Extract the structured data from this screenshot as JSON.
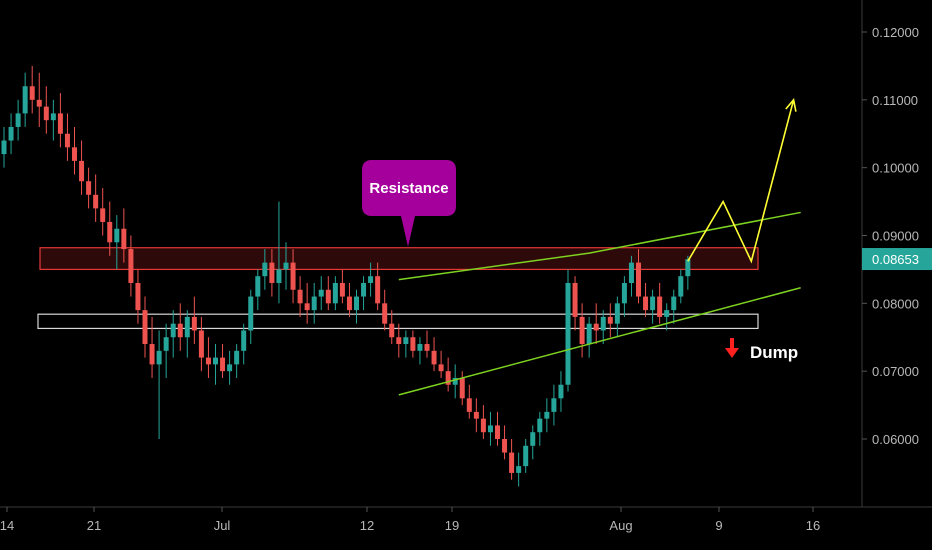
{
  "chart_data": {
    "type": "candlestick",
    "y_axis": {
      "ticks": [
        "0.12000",
        "0.11000",
        "0.10000",
        "0.09000",
        "0.08000",
        "0.07000",
        "0.06000"
      ],
      "ylim": [
        0.0525,
        0.1255
      ],
      "current_price": "0.08653"
    },
    "x_axis": {
      "ticks": [
        "14",
        "21",
        "Jul",
        "12",
        "19",
        "Aug",
        "9",
        "16"
      ]
    },
    "colors": {
      "up": "#26a69a",
      "down": "#ef5350",
      "resistance_border": "#e53935",
      "resistance_fill": "#3a0b0b",
      "support_border": "#d9d9d9",
      "channel": "#7ed321",
      "projection": "#ffff33",
      "callout": "#a5009c",
      "dump_arrow": "#ff2020",
      "current_price_bg": "#26a69a"
    },
    "zones": [
      {
        "name": "resistance",
        "low": 0.085,
        "high": 0.0882
      },
      {
        "name": "support",
        "low": 0.0763,
        "high": 0.0784
      }
    ],
    "candles": [
      [
        0.102,
        0.106,
        0.1,
        0.104
      ],
      [
        0.104,
        0.108,
        0.102,
        0.106
      ],
      [
        0.106,
        0.11,
        0.104,
        0.108
      ],
      [
        0.108,
        0.114,
        0.106,
        0.112
      ],
      [
        0.112,
        0.115,
        0.108,
        0.11
      ],
      [
        0.11,
        0.114,
        0.106,
        0.109
      ],
      [
        0.109,
        0.112,
        0.105,
        0.107
      ],
      [
        0.107,
        0.11,
        0.104,
        0.108
      ],
      [
        0.108,
        0.111,
        0.103,
        0.105
      ],
      [
        0.105,
        0.108,
        0.101,
        0.103
      ],
      [
        0.103,
        0.106,
        0.099,
        0.101
      ],
      [
        0.101,
        0.104,
        0.096,
        0.098
      ],
      [
        0.098,
        0.1,
        0.094,
        0.096
      ],
      [
        0.096,
        0.099,
        0.092,
        0.094
      ],
      [
        0.094,
        0.097,
        0.09,
        0.092
      ],
      [
        0.092,
        0.095,
        0.087,
        0.089
      ],
      [
        0.089,
        0.093,
        0.085,
        0.091
      ],
      [
        0.091,
        0.094,
        0.086,
        0.088
      ],
      [
        0.088,
        0.09,
        0.081,
        0.083
      ],
      [
        0.083,
        0.085,
        0.077,
        0.079
      ],
      [
        0.079,
        0.081,
        0.072,
        0.074
      ],
      [
        0.074,
        0.078,
        0.069,
        0.071
      ],
      [
        0.071,
        0.076,
        0.06,
        0.073
      ],
      [
        0.073,
        0.077,
        0.069,
        0.075
      ],
      [
        0.075,
        0.079,
        0.072,
        0.077
      ],
      [
        0.077,
        0.08,
        0.073,
        0.075
      ],
      [
        0.075,
        0.079,
        0.072,
        0.078
      ],
      [
        0.078,
        0.081,
        0.074,
        0.076
      ],
      [
        0.076,
        0.078,
        0.07,
        0.072
      ],
      [
        0.072,
        0.075,
        0.069,
        0.071
      ],
      [
        0.071,
        0.074,
        0.068,
        0.072
      ],
      [
        0.072,
        0.074,
        0.069,
        0.07
      ],
      [
        0.07,
        0.073,
        0.068,
        0.071
      ],
      [
        0.071,
        0.074,
        0.069,
        0.073
      ],
      [
        0.073,
        0.077,
        0.071,
        0.076
      ],
      [
        0.076,
        0.082,
        0.074,
        0.081
      ],
      [
        0.081,
        0.085,
        0.079,
        0.084
      ],
      [
        0.084,
        0.088,
        0.082,
        0.086
      ],
      [
        0.086,
        0.088,
        0.081,
        0.083
      ],
      [
        0.083,
        0.095,
        0.08,
        0.085
      ],
      [
        0.085,
        0.089,
        0.082,
        0.086
      ],
      [
        0.086,
        0.088,
        0.08,
        0.082
      ],
      [
        0.082,
        0.084,
        0.078,
        0.08
      ],
      [
        0.08,
        0.083,
        0.077,
        0.079
      ],
      [
        0.079,
        0.083,
        0.077,
        0.081
      ],
      [
        0.081,
        0.084,
        0.079,
        0.082
      ],
      [
        0.082,
        0.084,
        0.079,
        0.08
      ],
      [
        0.08,
        0.084,
        0.079,
        0.083
      ],
      [
        0.083,
        0.085,
        0.08,
        0.081
      ],
      [
        0.081,
        0.083,
        0.078,
        0.079
      ],
      [
        0.079,
        0.082,
        0.077,
        0.081
      ],
      [
        0.081,
        0.084,
        0.079,
        0.083
      ],
      [
        0.083,
        0.086,
        0.081,
        0.084
      ],
      [
        0.084,
        0.086,
        0.079,
        0.08
      ],
      [
        0.08,
        0.082,
        0.076,
        0.077
      ],
      [
        0.077,
        0.079,
        0.074,
        0.075
      ],
      [
        0.075,
        0.077,
        0.072,
        0.074
      ],
      [
        0.074,
        0.076,
        0.072,
        0.075
      ],
      [
        0.075,
        0.076,
        0.072,
        0.073
      ],
      [
        0.073,
        0.075,
        0.071,
        0.074
      ],
      [
        0.074,
        0.076,
        0.072,
        0.073
      ],
      [
        0.073,
        0.075,
        0.07,
        0.071
      ],
      [
        0.071,
        0.073,
        0.069,
        0.07
      ],
      [
        0.07,
        0.072,
        0.067,
        0.068
      ],
      [
        0.068,
        0.071,
        0.066,
        0.069
      ],
      [
        0.069,
        0.07,
        0.065,
        0.066
      ],
      [
        0.066,
        0.068,
        0.063,
        0.064
      ],
      [
        0.064,
        0.066,
        0.061,
        0.063
      ],
      [
        0.063,
        0.065,
        0.06,
        0.061
      ],
      [
        0.061,
        0.064,
        0.059,
        0.062
      ],
      [
        0.062,
        0.064,
        0.059,
        0.06
      ],
      [
        0.06,
        0.062,
        0.057,
        0.058
      ],
      [
        0.058,
        0.06,
        0.054,
        0.055
      ],
      [
        0.055,
        0.058,
        0.053,
        0.056
      ],
      [
        0.056,
        0.06,
        0.055,
        0.059
      ],
      [
        0.059,
        0.062,
        0.057,
        0.061
      ],
      [
        0.061,
        0.064,
        0.059,
        0.063
      ],
      [
        0.063,
        0.066,
        0.061,
        0.064
      ],
      [
        0.064,
        0.068,
        0.062,
        0.066
      ],
      [
        0.066,
        0.07,
        0.064,
        0.068
      ],
      [
        0.068,
        0.085,
        0.067,
        0.083
      ],
      [
        0.083,
        0.084,
        0.076,
        0.078
      ],
      [
        0.078,
        0.08,
        0.072,
        0.074
      ],
      [
        0.074,
        0.078,
        0.072,
        0.077
      ],
      [
        0.077,
        0.08,
        0.074,
        0.076
      ],
      [
        0.076,
        0.079,
        0.074,
        0.078
      ],
      [
        0.078,
        0.08,
        0.075,
        0.077
      ],
      [
        0.077,
        0.081,
        0.075,
        0.08
      ],
      [
        0.08,
        0.084,
        0.078,
        0.083
      ],
      [
        0.083,
        0.087,
        0.081,
        0.086
      ],
      [
        0.086,
        0.088,
        0.08,
        0.081
      ],
      [
        0.081,
        0.083,
        0.078,
        0.079
      ],
      [
        0.079,
        0.082,
        0.077,
        0.081
      ],
      [
        0.081,
        0.083,
        0.077,
        0.078
      ],
      [
        0.078,
        0.08,
        0.076,
        0.079
      ],
      [
        0.079,
        0.082,
        0.077,
        0.081
      ],
      [
        0.081,
        0.085,
        0.08,
        0.084
      ],
      [
        0.084,
        0.087,
        0.082,
        0.0865
      ]
    ],
    "trendlines": [
      {
        "name": "channel-upper",
        "points": [
          [
            56,
            0.0835
          ],
          [
            83,
            0.0874
          ],
          [
            113,
            0.0934
          ]
        ]
      },
      {
        "name": "channel-lower",
        "points": [
          [
            56,
            0.0665
          ],
          [
            113,
            0.0823
          ]
        ]
      }
    ],
    "projection": [
      [
        97,
        0.0862
      ],
      [
        102,
        0.095
      ],
      [
        106,
        0.0862
      ],
      [
        112,
        0.11
      ]
    ],
    "annotations": [
      {
        "name": "resistance-callout",
        "text": "Resistance"
      },
      {
        "name": "dump-label",
        "text": "Dump"
      }
    ]
  }
}
